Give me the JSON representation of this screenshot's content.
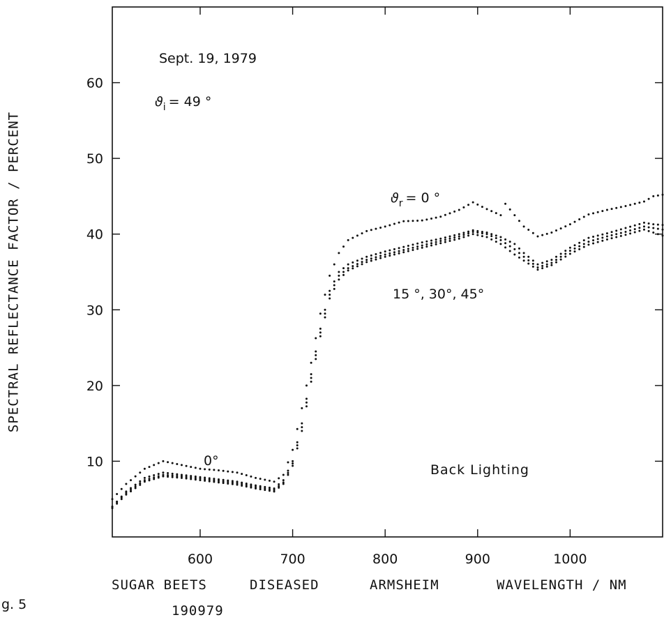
{
  "figure_label": "g. 5",
  "chart_data": {
    "type": "scatter",
    "title": "",
    "xlabel": "WAVELENGTH / NM",
    "ylabel": "SPECTRAL REFLECTANCE FACTOR / PERCENT",
    "xlim": [
      505,
      1100
    ],
    "ylim": [
      0,
      70
    ],
    "x_ticks": [
      600,
      700,
      800,
      900,
      1000
    ],
    "x_tick_labels": [
      "600",
      "700",
      "800",
      "900",
      "1000"
    ],
    "y_ticks": [
      10,
      20,
      30,
      40,
      50,
      60
    ],
    "y_tick_labels": [
      "10",
      "20",
      "30",
      "40",
      "50",
      "60"
    ],
    "grid": false,
    "caption_line1": [
      "SUGAR BEETS",
      "DISEASED",
      "ARMSHEIM"
    ],
    "caption_line2": "190979",
    "annotations": {
      "date": "Sept. 19, 1979",
      "incidence_symbol": "ϑ",
      "incidence_sub": "i",
      "incidence_value": "= 49 °",
      "zero_label_symbol": "ϑ",
      "zero_label_sub": "r",
      "zero_label_value": "= 0 °",
      "low_zero_label": "0°",
      "group_label": "15 °, 30°, 45°",
      "lighting": "Back Lighting"
    },
    "series": [
      {
        "x": [
          505,
          520,
          540,
          560,
          580,
          600,
          620,
          640,
          660,
          680,
          690,
          700,
          710,
          720,
          730,
          740,
          750,
          760,
          780,
          800,
          820,
          840,
          860,
          880,
          895,
          910,
          925,
          930,
          950,
          965,
          980,
          1000,
          1020,
          1040,
          1060,
          1080,
          1090,
          1100
        ],
        "y": [
          5.0,
          7.0,
          9.0,
          10.0,
          9.5,
          9.0,
          8.8,
          8.5,
          7.8,
          7.3,
          8.2,
          11.5,
          17.0,
          23.0,
          29.5,
          34.5,
          37.5,
          39.2,
          40.4,
          41.0,
          41.7,
          41.8,
          42.3,
          43.2,
          44.2,
          43.3,
          42.5,
          44.0,
          41.0,
          39.7,
          40.2,
          41.3,
          42.6,
          43.2,
          43.7,
          44.3,
          45.0,
          45.2
        ]
      },
      {
        "x": [
          505,
          520,
          540,
          560,
          580,
          600,
          620,
          640,
          660,
          680,
          690,
          700,
          710,
          720,
          730,
          740,
          750,
          760,
          780,
          800,
          820,
          840,
          860,
          880,
          895,
          910,
          925,
          940,
          950,
          965,
          980,
          1000,
          1020,
          1040,
          1060,
          1080,
          1090,
          1100
        ],
        "y": [
          4.0,
          6.0,
          7.8,
          8.5,
          8.2,
          7.9,
          7.6,
          7.3,
          6.8,
          6.4,
          7.5,
          10.0,
          15.0,
          21.5,
          27.5,
          32.5,
          35.0,
          36.0,
          37.0,
          37.7,
          38.3,
          38.9,
          39.4,
          40.0,
          40.5,
          40.2,
          39.6,
          38.7,
          37.5,
          36.0,
          36.6,
          38.2,
          39.5,
          40.1,
          40.8,
          41.5,
          41.3,
          41.2
        ]
      },
      {
        "x": [
          505,
          520,
          540,
          560,
          580,
          600,
          620,
          640,
          660,
          680,
          690,
          700,
          710,
          720,
          730,
          740,
          750,
          760,
          780,
          800,
          820,
          840,
          860,
          880,
          895,
          910,
          925,
          940,
          950,
          965,
          980,
          1000,
          1020,
          1040,
          1060,
          1080,
          1090,
          1100
        ],
        "y": [
          4.0,
          5.8,
          7.5,
          8.2,
          8.0,
          7.7,
          7.4,
          7.1,
          6.6,
          6.2,
          7.2,
          9.7,
          14.5,
          21.0,
          27.0,
          32.0,
          34.5,
          35.5,
          36.6,
          37.3,
          37.9,
          38.5,
          39.1,
          39.7,
          40.3,
          40.0,
          39.2,
          38.0,
          37.0,
          35.6,
          36.2,
          37.8,
          39.0,
          39.7,
          40.3,
          41.0,
          40.8,
          40.6
        ]
      },
      {
        "x": [
          505,
          520,
          540,
          560,
          580,
          600,
          620,
          640,
          660,
          680,
          690,
          700,
          710,
          720,
          730,
          740,
          750,
          760,
          780,
          800,
          820,
          840,
          860,
          880,
          895,
          910,
          925,
          940,
          950,
          965,
          980,
          1000,
          1020,
          1040,
          1060,
          1080,
          1090,
          1100
        ],
        "y": [
          3.8,
          5.6,
          7.3,
          8.0,
          7.8,
          7.5,
          7.2,
          6.9,
          6.4,
          6.0,
          7.0,
          9.4,
          14.0,
          20.5,
          26.5,
          31.5,
          34.0,
          35.2,
          36.3,
          37.0,
          37.6,
          38.2,
          38.8,
          39.4,
          40.0,
          39.6,
          38.7,
          37.3,
          36.5,
          35.3,
          35.9,
          37.4,
          38.6,
          39.3,
          39.9,
          40.6,
          40.2,
          39.8
        ]
      }
    ]
  }
}
